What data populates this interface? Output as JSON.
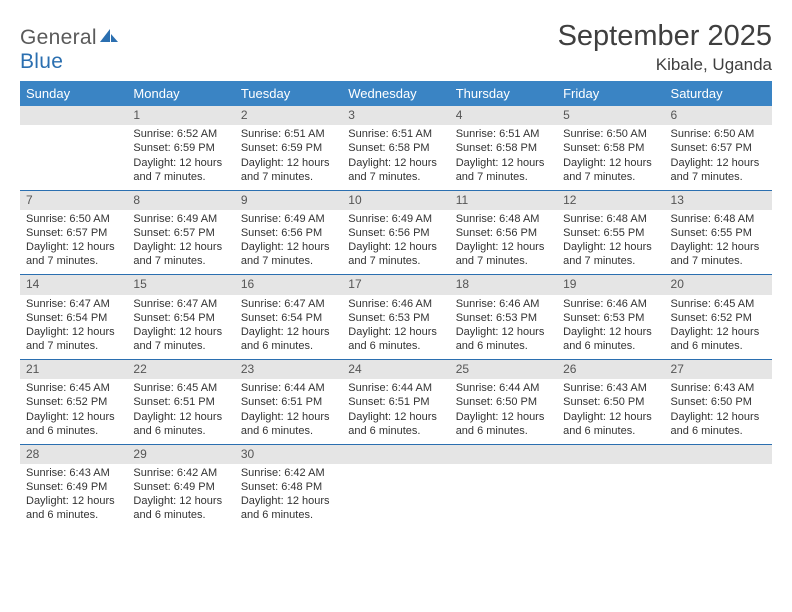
{
  "logo": {
    "text1": "General",
    "text2": "Blue"
  },
  "title": "September 2025",
  "location": "Kibale, Uganda",
  "colors": {
    "header_bg": "#3a84c4",
    "header_fg": "#ffffff",
    "rule": "#2b6fb0",
    "daynum_bg": "#e5e5e5",
    "daynum_fg": "#555555",
    "text": "#333333",
    "logo_gray": "#5a5a5a",
    "logo_blue": "#2b6fb0"
  },
  "weekdays": [
    "Sunday",
    "Monday",
    "Tuesday",
    "Wednesday",
    "Thursday",
    "Friday",
    "Saturday"
  ],
  "weeks": [
    [
      {
        "n": "",
        "sr": "",
        "ss": "",
        "dl": ""
      },
      {
        "n": "1",
        "sr": "Sunrise: 6:52 AM",
        "ss": "Sunset: 6:59 PM",
        "dl": "Daylight: 12 hours and 7 minutes."
      },
      {
        "n": "2",
        "sr": "Sunrise: 6:51 AM",
        "ss": "Sunset: 6:59 PM",
        "dl": "Daylight: 12 hours and 7 minutes."
      },
      {
        "n": "3",
        "sr": "Sunrise: 6:51 AM",
        "ss": "Sunset: 6:58 PM",
        "dl": "Daylight: 12 hours and 7 minutes."
      },
      {
        "n": "4",
        "sr": "Sunrise: 6:51 AM",
        "ss": "Sunset: 6:58 PM",
        "dl": "Daylight: 12 hours and 7 minutes."
      },
      {
        "n": "5",
        "sr": "Sunrise: 6:50 AM",
        "ss": "Sunset: 6:58 PM",
        "dl": "Daylight: 12 hours and 7 minutes."
      },
      {
        "n": "6",
        "sr": "Sunrise: 6:50 AM",
        "ss": "Sunset: 6:57 PM",
        "dl": "Daylight: 12 hours and 7 minutes."
      }
    ],
    [
      {
        "n": "7",
        "sr": "Sunrise: 6:50 AM",
        "ss": "Sunset: 6:57 PM",
        "dl": "Daylight: 12 hours and 7 minutes."
      },
      {
        "n": "8",
        "sr": "Sunrise: 6:49 AM",
        "ss": "Sunset: 6:57 PM",
        "dl": "Daylight: 12 hours and 7 minutes."
      },
      {
        "n": "9",
        "sr": "Sunrise: 6:49 AM",
        "ss": "Sunset: 6:56 PM",
        "dl": "Daylight: 12 hours and 7 minutes."
      },
      {
        "n": "10",
        "sr": "Sunrise: 6:49 AM",
        "ss": "Sunset: 6:56 PM",
        "dl": "Daylight: 12 hours and 7 minutes."
      },
      {
        "n": "11",
        "sr": "Sunrise: 6:48 AM",
        "ss": "Sunset: 6:56 PM",
        "dl": "Daylight: 12 hours and 7 minutes."
      },
      {
        "n": "12",
        "sr": "Sunrise: 6:48 AM",
        "ss": "Sunset: 6:55 PM",
        "dl": "Daylight: 12 hours and 7 minutes."
      },
      {
        "n": "13",
        "sr": "Sunrise: 6:48 AM",
        "ss": "Sunset: 6:55 PM",
        "dl": "Daylight: 12 hours and 7 minutes."
      }
    ],
    [
      {
        "n": "14",
        "sr": "Sunrise: 6:47 AM",
        "ss": "Sunset: 6:54 PM",
        "dl": "Daylight: 12 hours and 7 minutes."
      },
      {
        "n": "15",
        "sr": "Sunrise: 6:47 AM",
        "ss": "Sunset: 6:54 PM",
        "dl": "Daylight: 12 hours and 7 minutes."
      },
      {
        "n": "16",
        "sr": "Sunrise: 6:47 AM",
        "ss": "Sunset: 6:54 PM",
        "dl": "Daylight: 12 hours and 6 minutes."
      },
      {
        "n": "17",
        "sr": "Sunrise: 6:46 AM",
        "ss": "Sunset: 6:53 PM",
        "dl": "Daylight: 12 hours and 6 minutes."
      },
      {
        "n": "18",
        "sr": "Sunrise: 6:46 AM",
        "ss": "Sunset: 6:53 PM",
        "dl": "Daylight: 12 hours and 6 minutes."
      },
      {
        "n": "19",
        "sr": "Sunrise: 6:46 AM",
        "ss": "Sunset: 6:53 PM",
        "dl": "Daylight: 12 hours and 6 minutes."
      },
      {
        "n": "20",
        "sr": "Sunrise: 6:45 AM",
        "ss": "Sunset: 6:52 PM",
        "dl": "Daylight: 12 hours and 6 minutes."
      }
    ],
    [
      {
        "n": "21",
        "sr": "Sunrise: 6:45 AM",
        "ss": "Sunset: 6:52 PM",
        "dl": "Daylight: 12 hours and 6 minutes."
      },
      {
        "n": "22",
        "sr": "Sunrise: 6:45 AM",
        "ss": "Sunset: 6:51 PM",
        "dl": "Daylight: 12 hours and 6 minutes."
      },
      {
        "n": "23",
        "sr": "Sunrise: 6:44 AM",
        "ss": "Sunset: 6:51 PM",
        "dl": "Daylight: 12 hours and 6 minutes."
      },
      {
        "n": "24",
        "sr": "Sunrise: 6:44 AM",
        "ss": "Sunset: 6:51 PM",
        "dl": "Daylight: 12 hours and 6 minutes."
      },
      {
        "n": "25",
        "sr": "Sunrise: 6:44 AM",
        "ss": "Sunset: 6:50 PM",
        "dl": "Daylight: 12 hours and 6 minutes."
      },
      {
        "n": "26",
        "sr": "Sunrise: 6:43 AM",
        "ss": "Sunset: 6:50 PM",
        "dl": "Daylight: 12 hours and 6 minutes."
      },
      {
        "n": "27",
        "sr": "Sunrise: 6:43 AM",
        "ss": "Sunset: 6:50 PM",
        "dl": "Daylight: 12 hours and 6 minutes."
      }
    ],
    [
      {
        "n": "28",
        "sr": "Sunrise: 6:43 AM",
        "ss": "Sunset: 6:49 PM",
        "dl": "Daylight: 12 hours and 6 minutes."
      },
      {
        "n": "29",
        "sr": "Sunrise: 6:42 AM",
        "ss": "Sunset: 6:49 PM",
        "dl": "Daylight: 12 hours and 6 minutes."
      },
      {
        "n": "30",
        "sr": "Sunrise: 6:42 AM",
        "ss": "Sunset: 6:48 PM",
        "dl": "Daylight: 12 hours and 6 minutes."
      },
      {
        "n": "",
        "sr": "",
        "ss": "",
        "dl": ""
      },
      {
        "n": "",
        "sr": "",
        "ss": "",
        "dl": ""
      },
      {
        "n": "",
        "sr": "",
        "ss": "",
        "dl": ""
      },
      {
        "n": "",
        "sr": "",
        "ss": "",
        "dl": ""
      }
    ]
  ]
}
